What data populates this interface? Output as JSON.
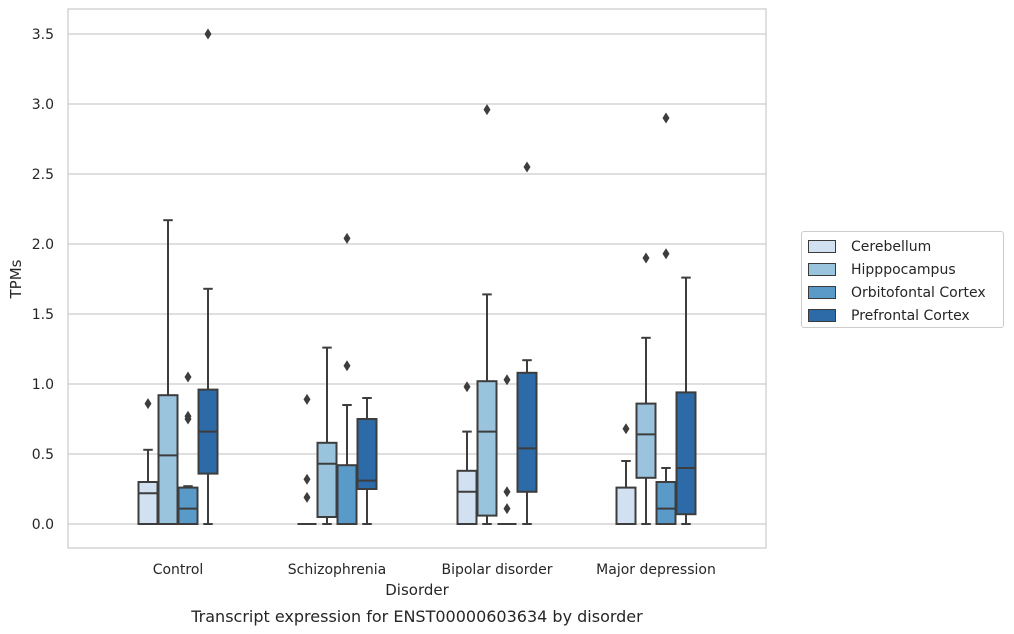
{
  "chart_data": {
    "type": "box",
    "title": "Transcript expression for ENST00000603634 by disorder",
    "xlabel": "Disorder",
    "ylabel": "TPMs",
    "ylim": [
      -0.17,
      3.68
    ],
    "yticks": [
      "0.0",
      "0.5",
      "1.0",
      "1.5",
      "2.0",
      "2.5",
      "3.0",
      "3.5"
    ],
    "grid": "horizontal",
    "legend_position": "right",
    "categories": [
      "Control",
      "Schizophrenia",
      "Bipolar disorder",
      "Major depression"
    ],
    "series": [
      {
        "name": "Cerebellum",
        "color": "#d1e1f1",
        "boxes": [
          {
            "whislo": 0.0,
            "q1": 0.0,
            "med": 0.22,
            "q3": 0.3,
            "whishi": 0.53,
            "fliers": [
              0.86
            ]
          },
          {
            "whislo": 0.0,
            "q1": 0.0,
            "med": 0.0,
            "q3": 0.0,
            "whishi": 0.0,
            "fliers": [
              0.89,
              0.32,
              0.19
            ]
          },
          {
            "whislo": 0.0,
            "q1": 0.0,
            "med": 0.23,
            "q3": 0.38,
            "whishi": 0.66,
            "fliers": [
              0.98
            ]
          },
          {
            "whislo": 0.0,
            "q1": 0.0,
            "med": 0.0,
            "q3": 0.26,
            "whishi": 0.45,
            "fliers": [
              0.68
            ]
          }
        ]
      },
      {
        "name": "Hipppocampus",
        "color": "#9ac4de",
        "boxes": [
          {
            "whislo": 0.0,
            "q1": 0.0,
            "med": 0.49,
            "q3": 0.92,
            "whishi": 2.17,
            "fliers": []
          },
          {
            "whislo": 0.0,
            "q1": 0.05,
            "med": 0.43,
            "q3": 0.58,
            "whishi": 1.26,
            "fliers": []
          },
          {
            "whislo": 0.0,
            "q1": 0.06,
            "med": 0.66,
            "q3": 1.02,
            "whishi": 1.64,
            "fliers": [
              2.96
            ]
          },
          {
            "whislo": 0.0,
            "q1": 0.33,
            "med": 0.64,
            "q3": 0.86,
            "whishi": 1.33,
            "fliers": [
              1.9
            ]
          }
        ]
      },
      {
        "name": "Orbitofontal Cortex",
        "color": "#5a9ac9",
        "boxes": [
          {
            "whislo": 0.0,
            "q1": 0.0,
            "med": 0.11,
            "q3": 0.26,
            "whishi": 0.27,
            "fliers": [
              1.05,
              0.77,
              0.75
            ]
          },
          {
            "whislo": 0.0,
            "q1": 0.0,
            "med": 0.0,
            "q3": 0.42,
            "whishi": 0.85,
            "fliers": [
              2.04,
              1.13
            ]
          },
          {
            "whislo": 0.0,
            "q1": 0.0,
            "med": 0.0,
            "q3": 0.0,
            "whishi": 0.0,
            "fliers": [
              1.03,
              0.23,
              0.11
            ]
          },
          {
            "whislo": 0.0,
            "q1": 0.0,
            "med": 0.11,
            "q3": 0.3,
            "whishi": 0.4,
            "fliers": [
              2.9,
              1.93
            ]
          }
        ]
      },
      {
        "name": "Prefrontal Cortex",
        "color": "#2c6aa8",
        "boxes": [
          {
            "whislo": 0.0,
            "q1": 0.36,
            "med": 0.66,
            "q3": 0.96,
            "whishi": 1.68,
            "fliers": [
              3.5
            ]
          },
          {
            "whislo": 0.0,
            "q1": 0.25,
            "med": 0.31,
            "q3": 0.75,
            "whishi": 0.9,
            "fliers": []
          },
          {
            "whislo": 0.0,
            "q1": 0.23,
            "med": 0.54,
            "q3": 1.08,
            "whishi": 1.17,
            "fliers": [
              2.55
            ]
          },
          {
            "whislo": 0.0,
            "q1": 0.07,
            "med": 0.4,
            "q3": 0.94,
            "whishi": 1.76,
            "fliers": []
          }
        ]
      }
    ]
  }
}
